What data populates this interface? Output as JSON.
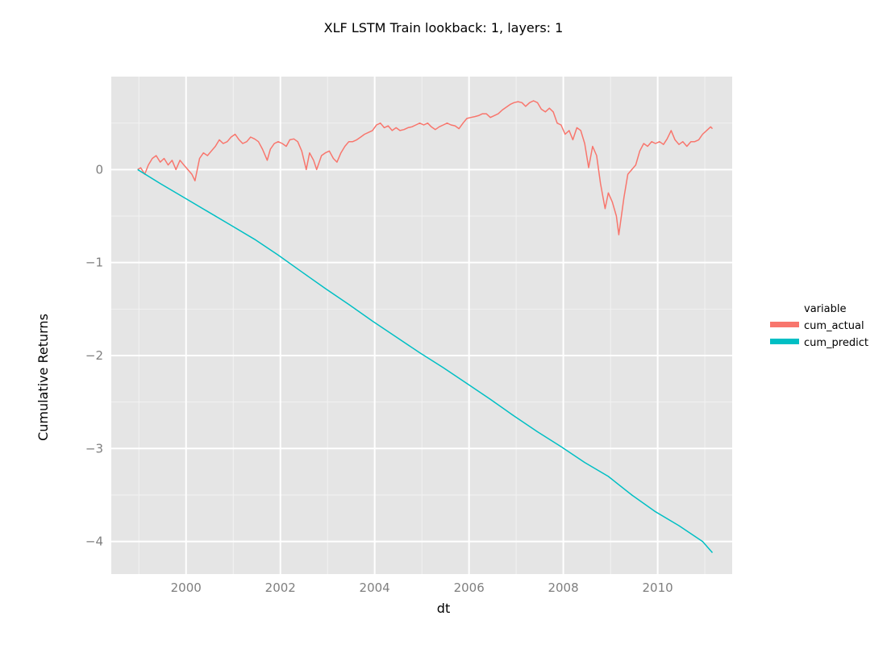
{
  "chart_data": {
    "type": "line",
    "title": "XLF LSTM Train lookback: 1, layers: 1",
    "xlabel": "dt",
    "ylabel": "Cumulative Returns",
    "xlim": [
      "1998-06-01",
      "2011-08-01"
    ],
    "ylim": [
      -4.35,
      1.0
    ],
    "x_ticks": [
      "2000",
      "2002",
      "2004",
      "2006",
      "2008",
      "2010"
    ],
    "y_ticks": [
      "0",
      "−1",
      "−2",
      "−3",
      "−4"
    ],
    "grid": true,
    "legend": {
      "title": "variable",
      "placement": "right"
    },
    "series": [
      {
        "name": "cum_actual",
        "color": "#F8766D",
        "points": [
          [
            "1998-12-22",
            0.0
          ],
          [
            "1999-01-15",
            0.02
          ],
          [
            "1999-02-15",
            -0.05
          ],
          [
            "1999-03-15",
            0.05
          ],
          [
            "1999-04-15",
            0.12
          ],
          [
            "1999-05-15",
            0.15
          ],
          [
            "1999-06-15",
            0.08
          ],
          [
            "1999-07-15",
            0.12
          ],
          [
            "1999-08-15",
            0.05
          ],
          [
            "1999-09-15",
            0.1
          ],
          [
            "1999-10-15",
            0.0
          ],
          [
            "1999-11-15",
            0.1
          ],
          [
            "1999-12-15",
            0.05
          ],
          [
            "2000-01-15",
            0.0
          ],
          [
            "2000-02-15",
            -0.05
          ],
          [
            "2000-03-10",
            -0.12
          ],
          [
            "2000-04-15",
            0.12
          ],
          [
            "2000-05-15",
            0.18
          ],
          [
            "2000-06-15",
            0.15
          ],
          [
            "2000-07-15",
            0.2
          ],
          [
            "2000-08-15",
            0.25
          ],
          [
            "2000-09-15",
            0.32
          ],
          [
            "2000-10-15",
            0.28
          ],
          [
            "2000-11-15",
            0.3
          ],
          [
            "2000-12-15",
            0.35
          ],
          [
            "2001-01-15",
            0.38
          ],
          [
            "2001-02-15",
            0.32
          ],
          [
            "2001-03-15",
            0.28
          ],
          [
            "2001-04-15",
            0.3
          ],
          [
            "2001-05-15",
            0.35
          ],
          [
            "2001-06-15",
            0.33
          ],
          [
            "2001-07-15",
            0.3
          ],
          [
            "2001-08-15",
            0.22
          ],
          [
            "2001-09-21",
            0.1
          ],
          [
            "2001-10-15",
            0.22
          ],
          [
            "2001-11-15",
            0.28
          ],
          [
            "2001-12-15",
            0.3
          ],
          [
            "2002-01-15",
            0.28
          ],
          [
            "2002-02-15",
            0.25
          ],
          [
            "2002-03-15",
            0.32
          ],
          [
            "2002-04-15",
            0.33
          ],
          [
            "2002-05-15",
            0.3
          ],
          [
            "2002-06-15",
            0.2
          ],
          [
            "2002-07-20",
            0.0
          ],
          [
            "2002-08-15",
            0.18
          ],
          [
            "2002-09-15",
            0.1
          ],
          [
            "2002-10-09",
            0.0
          ],
          [
            "2002-11-15",
            0.15
          ],
          [
            "2002-12-15",
            0.18
          ],
          [
            "2003-01-15",
            0.2
          ],
          [
            "2003-02-15",
            0.12
          ],
          [
            "2003-03-15",
            0.08
          ],
          [
            "2003-04-15",
            0.18
          ],
          [
            "2003-05-15",
            0.25
          ],
          [
            "2003-06-15",
            0.3
          ],
          [
            "2003-07-15",
            0.3
          ],
          [
            "2003-08-15",
            0.32
          ],
          [
            "2003-09-15",
            0.35
          ],
          [
            "2003-10-15",
            0.38
          ],
          [
            "2003-11-15",
            0.4
          ],
          [
            "2003-12-15",
            0.42
          ],
          [
            "2004-01-15",
            0.48
          ],
          [
            "2004-02-15",
            0.5
          ],
          [
            "2004-03-15",
            0.45
          ],
          [
            "2004-04-15",
            0.47
          ],
          [
            "2004-05-15",
            0.42
          ],
          [
            "2004-06-15",
            0.45
          ],
          [
            "2004-07-15",
            0.42
          ],
          [
            "2004-08-15",
            0.43
          ],
          [
            "2004-09-15",
            0.45
          ],
          [
            "2004-10-15",
            0.46
          ],
          [
            "2004-11-15",
            0.48
          ],
          [
            "2004-12-15",
            0.5
          ],
          [
            "2005-01-15",
            0.48
          ],
          [
            "2005-02-15",
            0.5
          ],
          [
            "2005-03-15",
            0.46
          ],
          [
            "2005-04-15",
            0.43
          ],
          [
            "2005-05-15",
            0.46
          ],
          [
            "2005-06-15",
            0.48
          ],
          [
            "2005-07-15",
            0.5
          ],
          [
            "2005-08-15",
            0.48
          ],
          [
            "2005-09-15",
            0.47
          ],
          [
            "2005-10-15",
            0.44
          ],
          [
            "2005-11-15",
            0.5
          ],
          [
            "2005-12-15",
            0.55
          ],
          [
            "2006-01-15",
            0.56
          ],
          [
            "2006-02-15",
            0.57
          ],
          [
            "2006-03-15",
            0.58
          ],
          [
            "2006-04-15",
            0.6
          ],
          [
            "2006-05-15",
            0.6
          ],
          [
            "2006-06-15",
            0.56
          ],
          [
            "2006-07-15",
            0.58
          ],
          [
            "2006-08-15",
            0.6
          ],
          [
            "2006-09-15",
            0.64
          ],
          [
            "2006-10-15",
            0.67
          ],
          [
            "2006-11-15",
            0.7
          ],
          [
            "2006-12-15",
            0.72
          ],
          [
            "2007-01-15",
            0.73
          ],
          [
            "2007-02-15",
            0.72
          ],
          [
            "2007-03-15",
            0.68
          ],
          [
            "2007-04-15",
            0.72
          ],
          [
            "2007-05-15",
            0.74
          ],
          [
            "2007-06-15",
            0.72
          ],
          [
            "2007-07-15",
            0.65
          ],
          [
            "2007-08-15",
            0.62
          ],
          [
            "2007-09-15",
            0.66
          ],
          [
            "2007-10-15",
            0.62
          ],
          [
            "2007-11-15",
            0.5
          ],
          [
            "2007-12-15",
            0.48
          ],
          [
            "2008-01-15",
            0.38
          ],
          [
            "2008-02-15",
            0.42
          ],
          [
            "2008-03-15",
            0.32
          ],
          [
            "2008-04-15",
            0.45
          ],
          [
            "2008-05-15",
            0.42
          ],
          [
            "2008-06-15",
            0.28
          ],
          [
            "2008-07-15",
            0.02
          ],
          [
            "2008-08-15",
            0.25
          ],
          [
            "2008-09-15",
            0.15
          ],
          [
            "2008-10-15",
            -0.15
          ],
          [
            "2008-11-20",
            -0.42
          ],
          [
            "2008-12-15",
            -0.25
          ],
          [
            "2009-01-15",
            -0.35
          ],
          [
            "2009-02-15",
            -0.5
          ],
          [
            "2009-03-06",
            -0.7
          ],
          [
            "2009-04-15",
            -0.3
          ],
          [
            "2009-05-15",
            -0.05
          ],
          [
            "2009-06-15",
            0.0
          ],
          [
            "2009-07-15",
            0.05
          ],
          [
            "2009-08-15",
            0.2
          ],
          [
            "2009-09-15",
            0.28
          ],
          [
            "2009-10-15",
            0.25
          ],
          [
            "2009-11-15",
            0.3
          ],
          [
            "2009-12-15",
            0.28
          ],
          [
            "2010-01-15",
            0.3
          ],
          [
            "2010-02-15",
            0.27
          ],
          [
            "2010-03-15",
            0.33
          ],
          [
            "2010-04-15",
            0.42
          ],
          [
            "2010-05-15",
            0.32
          ],
          [
            "2010-06-15",
            0.27
          ],
          [
            "2010-07-15",
            0.3
          ],
          [
            "2010-08-15",
            0.25
          ],
          [
            "2010-09-15",
            0.3
          ],
          [
            "2010-10-15",
            0.3
          ],
          [
            "2010-11-15",
            0.32
          ],
          [
            "2010-12-15",
            0.38
          ],
          [
            "2011-01-15",
            0.42
          ],
          [
            "2011-02-15",
            0.46
          ],
          [
            "2011-03-01",
            0.44
          ]
        ]
      },
      {
        "name": "cum_predict",
        "color": "#00BFC4",
        "points": [
          [
            "1998-12-22",
            0.0
          ],
          [
            "1999-06-15",
            -0.15
          ],
          [
            "1999-12-15",
            -0.3
          ],
          [
            "2000-06-15",
            -0.45
          ],
          [
            "2000-12-15",
            -0.6
          ],
          [
            "2001-06-15",
            -0.75
          ],
          [
            "2001-12-15",
            -0.92
          ],
          [
            "2002-06-15",
            -1.1
          ],
          [
            "2002-12-15",
            -1.28
          ],
          [
            "2003-06-15",
            -1.45
          ],
          [
            "2003-12-15",
            -1.63
          ],
          [
            "2004-06-15",
            -1.8
          ],
          [
            "2004-12-15",
            -1.97
          ],
          [
            "2005-06-15",
            -2.13
          ],
          [
            "2005-12-15",
            -2.3
          ],
          [
            "2006-06-15",
            -2.47
          ],
          [
            "2006-12-15",
            -2.65
          ],
          [
            "2007-06-15",
            -2.82
          ],
          [
            "2007-12-15",
            -2.98
          ],
          [
            "2008-06-15",
            -3.15
          ],
          [
            "2008-12-15",
            -3.3
          ],
          [
            "2009-06-15",
            -3.5
          ],
          [
            "2009-12-15",
            -3.68
          ],
          [
            "2010-06-15",
            -3.83
          ],
          [
            "2010-12-15",
            -4.0
          ],
          [
            "2011-03-01",
            -4.12
          ]
        ]
      }
    ]
  }
}
